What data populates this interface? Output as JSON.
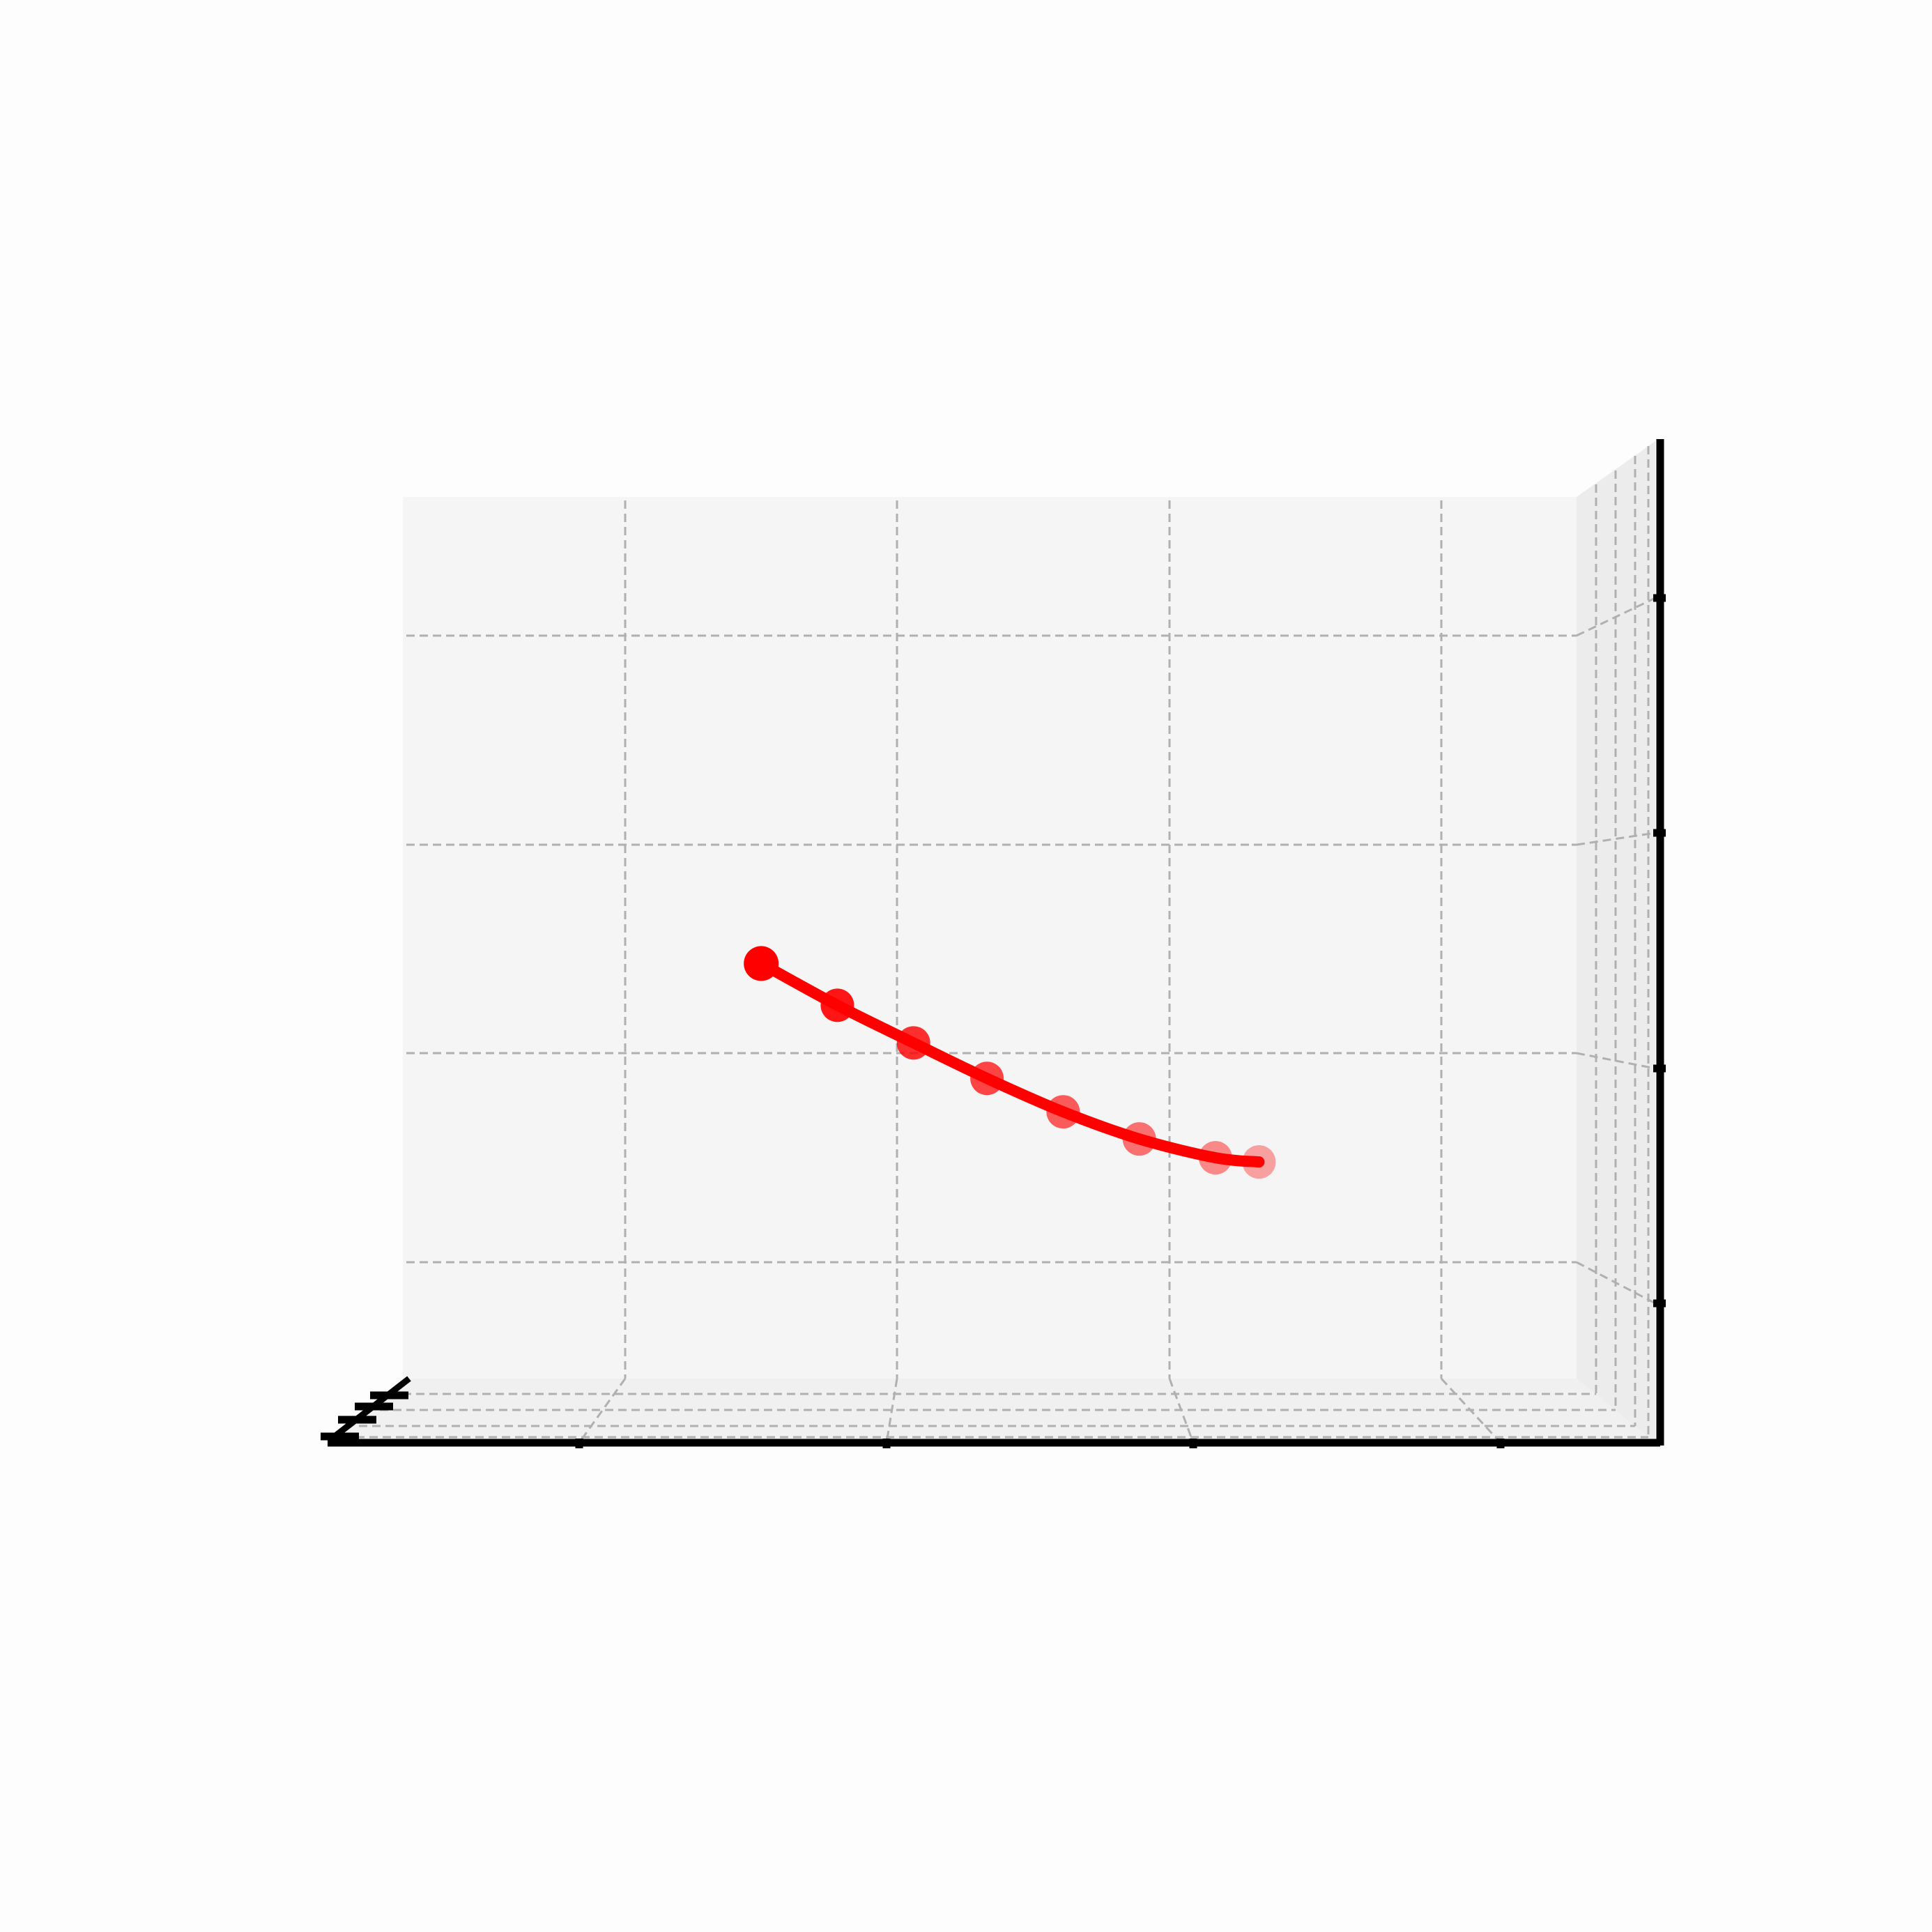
{
  "chart_data": {
    "type": "line",
    "projection": "3d",
    "title": "",
    "xlabel": "",
    "ylabel": "",
    "zlabel": "",
    "tick_labels_shown": false,
    "grid": true,
    "grid_style": "dashed",
    "legend": "none",
    "series": [
      {
        "color": "#ff0000",
        "marker": "circle",
        "marker_alpha_fades_along_path": true,
        "points": [
          {
            "x": 1.5,
            "y": 2.43
          },
          {
            "x": 1.78,
            "y": 2.23
          },
          {
            "x": 2.06,
            "y": 2.05
          },
          {
            "x": 2.33,
            "y": 1.88
          },
          {
            "x": 2.61,
            "y": 1.72
          },
          {
            "x": 2.89,
            "y": 1.59
          },
          {
            "x": 3.17,
            "y": 1.5
          },
          {
            "x": 3.33,
            "y": 1.48
          }
        ]
      }
    ]
  },
  "colors": {
    "line": "#ff0000",
    "pane": "#f5f5f5",
    "pane_side": "#ececec",
    "grid": "#b0b0b0",
    "axis": "#000000",
    "background": "#fdfdfd"
  }
}
